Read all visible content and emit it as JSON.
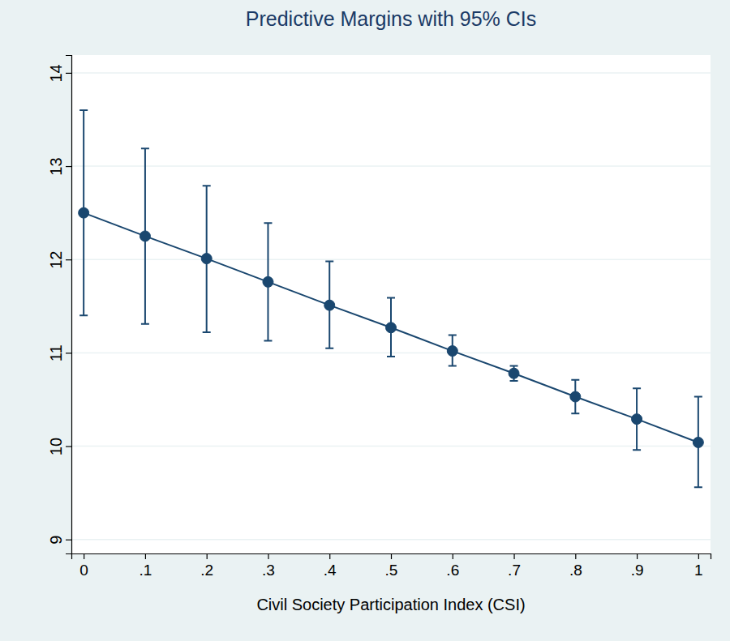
{
  "chart_data": {
    "type": "line",
    "title": "Predictive Margins with 95% CIs",
    "x_label": "Civil Society Participation Index (CSI)",
    "x": [
      0,
      0.1,
      0.2,
      0.3,
      0.4,
      0.5,
      0.6,
      0.7,
      0.8,
      0.9,
      1
    ],
    "series": [
      {
        "color": "#1a476f",
        "marker": "circle",
        "values": [
          12.5,
          12.25,
          12.01,
          11.76,
          11.51,
          11.27,
          11.02,
          10.78,
          10.53,
          10.29,
          10.04
        ],
        "ci_low": [
          11.4,
          11.31,
          11.22,
          11.13,
          11.05,
          10.96,
          10.86,
          10.7,
          10.35,
          9.96,
          9.56
        ],
        "ci_high": [
          13.6,
          13.19,
          12.79,
          12.39,
          11.98,
          11.59,
          11.19,
          10.86,
          10.71,
          10.62,
          10.53
        ]
      }
    ],
    "xlim": [
      -0.02,
      1.02
    ],
    "ylim": [
      8.85,
      14.19
    ],
    "xticks": [
      0,
      {
        "value": 0.1,
        "label": ".1"
      },
      {
        "value": 0.2,
        "label": ".2"
      },
      {
        "value": 0.3,
        "label": ".3"
      },
      {
        "value": 0.4,
        "label": ".4"
      },
      {
        "value": 0.5,
        "label": ".5"
      },
      {
        "value": 0.6,
        "label": ".6"
      },
      {
        "value": 0.7,
        "label": ".7"
      },
      {
        "value": 0.8,
        "label": ".8"
      },
      {
        "value": 0.9,
        "label": ".9"
      },
      1
    ],
    "yticks": [
      9,
      10,
      11,
      12,
      13,
      14
    ],
    "grid": true
  }
}
